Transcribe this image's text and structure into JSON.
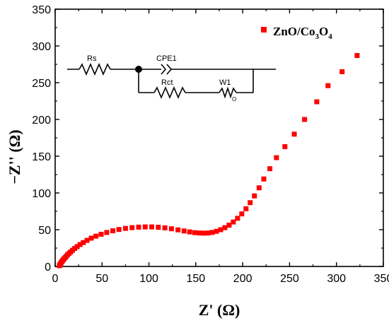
{
  "chart_data": {
    "type": "scatter",
    "xlabel": "Z' (Ω)",
    "ylabel": "−Z'' (Ω)",
    "xlim": [
      0,
      350
    ],
    "ylim": [
      0,
      350
    ],
    "x_ticks": [
      0,
      50,
      100,
      150,
      200,
      250,
      300,
      350
    ],
    "y_ticks": [
      0,
      50,
      100,
      150,
      200,
      250,
      300,
      350
    ],
    "x_tick_labels": [
      "0",
      "50",
      "100",
      "150",
      "200",
      "250",
      "300",
      "350"
    ],
    "y_tick_labels": [
      "0",
      "50",
      "100",
      "150",
      "200",
      "250",
      "300",
      "350"
    ],
    "legend": {
      "position": "top-right"
    },
    "series": [
      {
        "name": "ZnO/Co3O4",
        "name_parts": {
          "base": "ZnO/Co",
          "sub1": "3",
          "mid": "O",
          "sub2": "4"
        },
        "color": "#ff0000",
        "marker": "square",
        "points": [
          [
            4.5,
            1
          ],
          [
            5,
            2
          ],
          [
            5.5,
            3
          ],
          [
            6,
            4.5
          ],
          [
            6.8,
            6
          ],
          [
            7.6,
            7.5
          ],
          [
            8.5,
            9
          ],
          [
            9.5,
            10.5
          ],
          [
            10.6,
            12
          ],
          [
            11.8,
            13.8
          ],
          [
            13.2,
            15.8
          ],
          [
            14.8,
            17.8
          ],
          [
            16.5,
            19.8
          ],
          [
            18.5,
            22
          ],
          [
            20.8,
            24.5
          ],
          [
            23.5,
            27
          ],
          [
            26.5,
            29.8
          ],
          [
            30,
            32.5
          ],
          [
            34,
            35.5
          ],
          [
            38.5,
            38.5
          ],
          [
            43.5,
            41.2
          ],
          [
            49,
            43.8
          ],
          [
            55,
            46.2
          ],
          [
            61.5,
            48.5
          ],
          [
            68,
            50.3
          ],
          [
            75,
            51.8
          ],
          [
            82,
            52.8
          ],
          [
            89,
            53.5
          ],
          [
            96,
            53.8
          ],
          [
            103,
            53.8
          ],
          [
            110,
            53.3
          ],
          [
            117,
            52.5
          ],
          [
            124,
            51.3
          ],
          [
            131,
            49.8
          ],
          [
            137.5,
            48.3
          ],
          [
            143.5,
            47
          ],
          [
            149,
            46
          ],
          [
            154,
            45.5
          ],
          [
            158.5,
            45.3
          ],
          [
            163,
            45.5
          ],
          [
            167.5,
            46.3
          ],
          [
            172,
            47.8
          ],
          [
            176.5,
            50
          ],
          [
            181,
            52.8
          ],
          [
            185.5,
            56.2
          ],
          [
            190,
            60.5
          ],
          [
            194.5,
            65.5
          ],
          [
            199,
            71.5
          ],
          [
            203.5,
            78.5
          ],
          [
            208,
            86.8
          ],
          [
            212.5,
            96
          ],
          [
            217.5,
            107
          ],
          [
            222.5,
            119
          ],
          [
            229,
            133
          ],
          [
            236,
            148
          ],
          [
            245,
            163
          ],
          [
            255,
            180
          ],
          [
            266,
            200
          ],
          [
            279,
            224
          ],
          [
            291,
            246
          ],
          [
            306,
            265
          ],
          [
            322,
            287
          ]
        ]
      }
    ]
  },
  "circuit": {
    "labels": {
      "rs": "Rs",
      "cpe": "CPE1",
      "rct": "Rct",
      "w": "W1",
      "w_sub": "O"
    }
  }
}
